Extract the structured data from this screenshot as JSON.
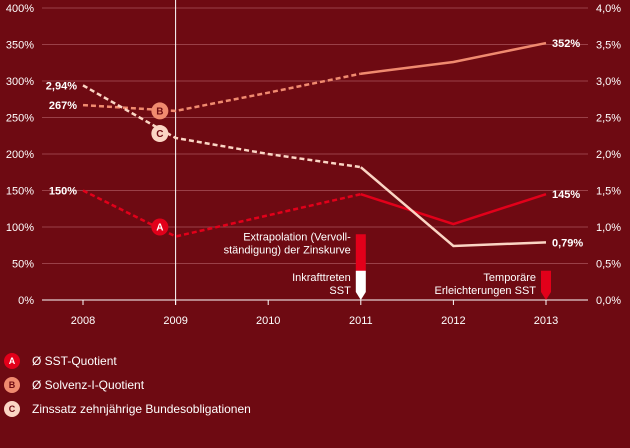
{
  "chart_data": {
    "type": "line",
    "categories": [
      "2008",
      "2009",
      "2010",
      "2011",
      "2012",
      "2013"
    ],
    "y_left": {
      "ticks": [
        "0%",
        "50%",
        "100%",
        "150%",
        "200%",
        "250%",
        "300%",
        "350%",
        "400%"
      ],
      "lim": [
        0,
        400
      ]
    },
    "y_right": {
      "ticks": [
        "0,0%",
        "0,5%",
        "1,0%",
        "1,5%",
        "2,0%",
        "2,5%",
        "3,0%",
        "3,5%",
        "4,0%"
      ],
      "lim": [
        0,
        4
      ]
    },
    "grid": true,
    "series": [
      {
        "id": "A",
        "name": "Ø SST-Quotient",
        "axis": "left",
        "color": "#e2001a",
        "values": [
          150,
          87,
          116,
          145,
          104,
          145
        ],
        "dashed_until": 3,
        "marker": {
          "x": 0.83,
          "y": 100,
          "letter": "A"
        }
      },
      {
        "id": "B",
        "name": "Ø Solvenz-I-Quotient",
        "axis": "left",
        "color": "#f08a6f",
        "values": [
          267,
          259,
          284,
          310,
          326,
          352
        ],
        "dashed_until": 3,
        "marker": {
          "x": 0.83,
          "y": 259,
          "letter": "B"
        }
      },
      {
        "id": "C",
        "name": "Zinssatz zehnjährige Bundesobligationen",
        "axis": "right",
        "color": "#fbd5c4",
        "values": [
          2.94,
          2.22,
          2.0,
          1.82,
          0.74,
          0.79
        ],
        "dashed_until": 3,
        "marker": {
          "x": 0.83,
          "y": 2.28,
          "letter": "C"
        }
      }
    ],
    "data_labels": [
      {
        "text": "150%",
        "x": 0,
        "y": 150,
        "axis": "left",
        "anchor": "end"
      },
      {
        "text": "267%",
        "x": 0,
        "y": 267,
        "axis": "left",
        "anchor": "end"
      },
      {
        "text": "2,94%",
        "x": 0,
        "y": 2.94,
        "axis": "right",
        "anchor": "end"
      },
      {
        "text": "352%",
        "x": 5,
        "y": 352,
        "axis": "left",
        "anchor": "start"
      },
      {
        "text": "145%",
        "x": 5,
        "y": 145,
        "axis": "left",
        "anchor": "start"
      },
      {
        "text": "0,79%",
        "x": 5,
        "y": 0.79,
        "axis": "right",
        "anchor": "start"
      }
    ],
    "vertical_marker_year": "2009",
    "annotations": [
      {
        "lines": [
          "Extrapolation (Vervoll-",
          "ständigung) der Zinskurve"
        ],
        "x": 3,
        "y_top": 90,
        "y_bottom": 30,
        "color": "#e2001a",
        "anchor": "end"
      },
      {
        "lines": [
          "Inkrafttreten",
          "SST"
        ],
        "x": 3,
        "y_top": 40,
        "y_bottom": 0,
        "color": "#ffffff",
        "anchor": "end"
      },
      {
        "lines": [
          "Temporäre",
          "Erleichterungen SST"
        ],
        "x": 5,
        "y_top": 40,
        "y_bottom": 0,
        "color": "#e2001a",
        "anchor": "end"
      }
    ]
  },
  "legend": [
    {
      "letter": "A",
      "label": "Ø SST-Quotient",
      "color": "#e2001a",
      "letter_color": "#ffffff"
    },
    {
      "letter": "B",
      "label": "Ø Solvenz-I-Quotient",
      "color": "#f08a6f",
      "letter_color": "#6e0a12"
    },
    {
      "letter": "C",
      "label": "Zinssatz zehnjährige Bundesobligationen",
      "color": "#fbd5c4",
      "letter_color": "#6e0a12"
    }
  ]
}
